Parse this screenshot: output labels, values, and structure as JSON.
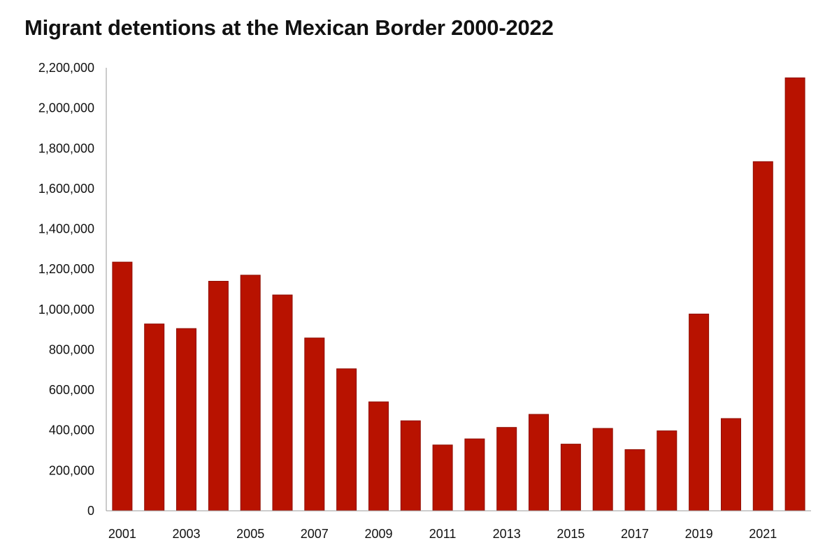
{
  "title": "Migrant detentions at the Mexican Border 2000-2022",
  "colors": {
    "bar": "#b81200",
    "bar_stroke": "#8f0e00",
    "axis": "#999999"
  },
  "chart_data": {
    "type": "bar",
    "title": "Migrant detentions at the Mexican Border 2000-2022",
    "categories": [
      "2001",
      "2002",
      "2003",
      "2004",
      "2005",
      "2006",
      "2007",
      "2008",
      "2009",
      "2010",
      "2011",
      "2012",
      "2013",
      "2014",
      "2015",
      "2016",
      "2017",
      "2018",
      "2019",
      "2020",
      "2021",
      "2022"
    ],
    "values": [
      1235000,
      928000,
      905000,
      1140000,
      1170000,
      1072000,
      858000,
      705000,
      541000,
      447000,
      327000,
      357000,
      414000,
      479000,
      331000,
      409000,
      304000,
      397000,
      977000,
      458000,
      1734000,
      2150000
    ],
    "x_tick_labels": [
      "2001",
      "2003",
      "2005",
      "2007",
      "2009",
      "2011",
      "2013",
      "2015",
      "2017",
      "2019",
      "2021"
    ],
    "y_tick_labels": [
      "0",
      "200,000",
      "400,000",
      "600,000",
      "800,000",
      "1,000,000",
      "1,200,000",
      "1,400,000",
      "1,600,000",
      "1,800,000",
      "2,000,000",
      "2,200,000"
    ],
    "ylim": [
      0,
      2200000
    ],
    "xlabel": "",
    "ylabel": "",
    "grid": false,
    "legend": "none"
  }
}
